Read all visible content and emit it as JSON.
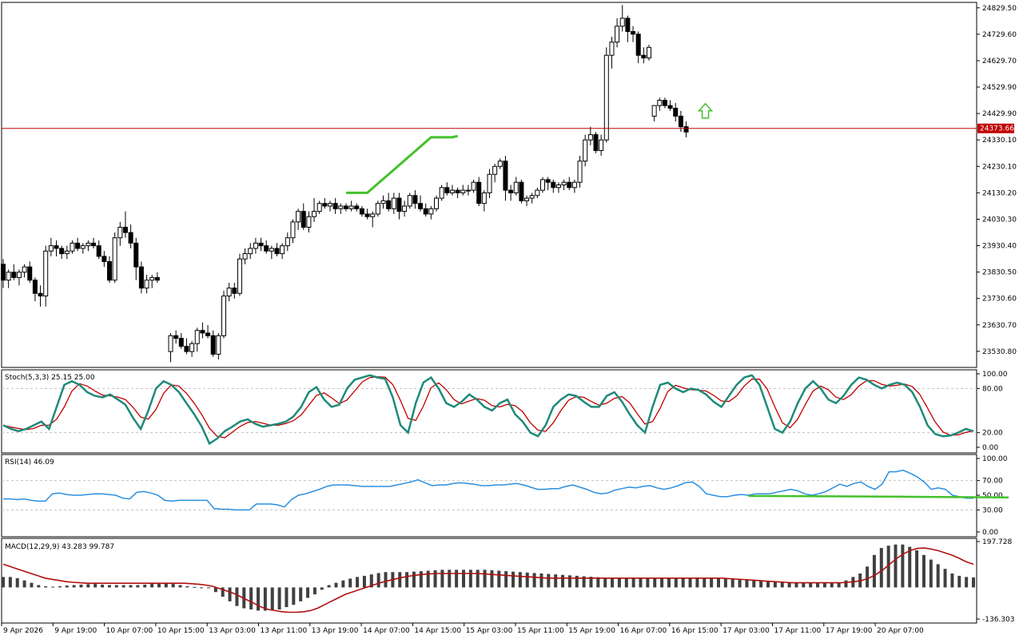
{
  "chart_data": {
    "type": "candlestick",
    "price_axis": {
      "ticks": [
        "24829.50",
        "24729.60",
        "24629.70",
        "24529.90",
        "24429.90",
        "24330.10",
        "24230.10",
        "24130.20",
        "24030.30",
        "23930.40",
        "23830.50",
        "23730.60",
        "23630.70",
        "23530.80"
      ],
      "range": [
        23470,
        24850
      ],
      "current_price": "24373.66",
      "current_price_value": 24373.66,
      "current_price_color": "#c00000"
    },
    "time_axis": {
      "labels": [
        "9 Apr 2026",
        "9 Apr 19:00",
        "10 Apr 07:00",
        "10 Apr 15:00",
        "13 Apr 03:00",
        "13 Apr 11:00",
        "13 Apr 19:00",
        "14 Apr 07:00",
        "14 Apr 15:00",
        "15 Apr 03:00",
        "15 Apr 11:00",
        "15 Apr 19:00",
        "16 Apr 07:00",
        "16 Apr 15:00",
        "17 Apr 03:00",
        "17 Apr 11:00",
        "17 Apr 19:00",
        "20 Apr 07:00"
      ]
    },
    "candles": [
      [
        23860,
        23880,
        23770,
        23800
      ],
      [
        23800,
        23840,
        23770,
        23830
      ],
      [
        23830,
        23860,
        23800,
        23810
      ],
      [
        23810,
        23840,
        23780,
        23830
      ],
      [
        23830,
        23860,
        23810,
        23850
      ],
      [
        23850,
        23870,
        23790,
        23800
      ],
      [
        23800,
        23810,
        23720,
        23750
      ],
      [
        23750,
        23780,
        23700,
        23740
      ],
      [
        23740,
        23930,
        23700,
        23910
      ],
      [
        23910,
        23960,
        23890,
        23930
      ],
      [
        23930,
        23950,
        23890,
        23920
      ],
      [
        23920,
        23930,
        23880,
        23900
      ],
      [
        23900,
        23930,
        23880,
        23910
      ],
      [
        23910,
        23950,
        23900,
        23940
      ],
      [
        23940,
        23960,
        23910,
        23920
      ],
      [
        23920,
        23940,
        23900,
        23930
      ],
      [
        23930,
        23950,
        23910,
        23940
      ],
      [
        23940,
        23960,
        23920,
        23930
      ],
      [
        23930,
        23950,
        23880,
        23890
      ],
      [
        23890,
        23910,
        23850,
        23870
      ],
      [
        23870,
        23890,
        23790,
        23800
      ],
      [
        23800,
        23980,
        23790,
        23960
      ],
      [
        23960,
        24020,
        23930,
        24000
      ],
      [
        24000,
        24060,
        23960,
        23980
      ],
      [
        23980,
        24010,
        23920,
        23940
      ],
      [
        23940,
        23960,
        23800,
        23850
      ],
      [
        23850,
        23870,
        23750,
        23770
      ],
      [
        23770,
        23820,
        23750,
        23800
      ],
      [
        23800,
        23820,
        23770,
        23810
      ],
      [
        23810,
        23830,
        23790,
        23800
      ],
      [
        23530,
        23600,
        23490,
        23590
      ],
      [
        23590,
        23610,
        23560,
        23580
      ],
      [
        23580,
        23600,
        23540,
        23550
      ],
      [
        23550,
        23580,
        23520,
        23530
      ],
      [
        23530,
        23570,
        23510,
        23560
      ],
      [
        23560,
        23620,
        23530,
        23610
      ],
      [
        23610,
        23640,
        23580,
        23600
      ],
      [
        23600,
        23630,
        23580,
        23590
      ],
      [
        23590,
        23610,
        23510,
        23520
      ],
      [
        23520,
        23600,
        23500,
        23590
      ],
      [
        23590,
        23760,
        23580,
        23740
      ],
      [
        23740,
        23790,
        23720,
        23770
      ],
      [
        23770,
        23790,
        23730,
        23750
      ],
      [
        23750,
        23900,
        23740,
        23880
      ],
      [
        23880,
        23920,
        23860,
        23900
      ],
      [
        23900,
        23940,
        23880,
        23920
      ],
      [
        23920,
        23960,
        23900,
        23940
      ],
      [
        23940,
        23960,
        23910,
        23930
      ],
      [
        23930,
        23950,
        23900,
        23910
      ],
      [
        23910,
        23930,
        23880,
        23920
      ],
      [
        23920,
        23940,
        23890,
        23900
      ],
      [
        23900,
        23940,
        23880,
        23930
      ],
      [
        23930,
        23980,
        23910,
        23960
      ],
      [
        23960,
        24030,
        23940,
        24020
      ],
      [
        24020,
        24070,
        23990,
        24060
      ],
      [
        24060,
        24090,
        23990,
        24000
      ],
      [
        24000,
        24060,
        23980,
        24040
      ],
      [
        24040,
        24110,
        24020,
        24060
      ],
      [
        24060,
        24100,
        24050,
        24090
      ],
      [
        24090,
        24110,
        24070,
        24080
      ],
      [
        24080,
        24100,
        24060,
        24090
      ],
      [
        24090,
        24110,
        24050,
        24070
      ],
      [
        24070,
        24090,
        24050,
        24080
      ],
      [
        24080,
        24090,
        24060,
        24070
      ],
      [
        24070,
        24100,
        24060,
        24080
      ],
      [
        24080,
        24090,
        24060,
        24070
      ],
      [
        24070,
        24080,
        24040,
        24050
      ],
      [
        24050,
        24070,
        24030,
        24040
      ],
      [
        24040,
        24060,
        24000,
        24050
      ],
      [
        24050,
        24100,
        24040,
        24090
      ],
      [
        24090,
        24120,
        24070,
        24100
      ],
      [
        24100,
        24130,
        24060,
        24070
      ],
      [
        24070,
        24130,
        24050,
        24110
      ],
      [
        24110,
        24130,
        24030,
        24060
      ],
      [
        24060,
        24100,
        24040,
        24080
      ],
      [
        24080,
        24130,
        24070,
        24120
      ],
      [
        24120,
        24140,
        24070,
        24090
      ],
      [
        24090,
        24120,
        24060,
        24070
      ],
      [
        24070,
        24090,
        24040,
        24050
      ],
      [
        24050,
        24080,
        24030,
        24070
      ],
      [
        24070,
        24120,
        24060,
        24110
      ],
      [
        24110,
        24160,
        24100,
        24150
      ],
      [
        24150,
        24170,
        24120,
        24130
      ],
      [
        24130,
        24160,
        24120,
        24140
      ],
      [
        24140,
        24150,
        24110,
        24130
      ],
      [
        24130,
        24160,
        24120,
        24140
      ],
      [
        24140,
        24160,
        24120,
        24140
      ],
      [
        24140,
        24180,
        24130,
        24170
      ],
      [
        24170,
        24190,
        24080,
        24090
      ],
      [
        24090,
        24140,
        24060,
        24130
      ],
      [
        24130,
        24220,
        24110,
        24200
      ],
      [
        24200,
        24240,
        24170,
        24230
      ],
      [
        24230,
        24260,
        24220,
        24250
      ],
      [
        24250,
        24270,
        24100,
        24140
      ],
      [
        24140,
        24160,
        24100,
        24130
      ],
      [
        24130,
        24190,
        24120,
        24170
      ],
      [
        24170,
        24180,
        24090,
        24100
      ],
      [
        24100,
        24120,
        24080,
        24110
      ],
      [
        24110,
        24130,
        24090,
        24120
      ],
      [
        24120,
        24150,
        24110,
        24140
      ],
      [
        24140,
        24190,
        24130,
        24180
      ],
      [
        24180,
        24190,
        24140,
        24170
      ],
      [
        24170,
        24180,
        24130,
        24150
      ],
      [
        24150,
        24170,
        24130,
        24160
      ],
      [
        24160,
        24180,
        24140,
        24170
      ],
      [
        24170,
        24190,
        24140,
        24150
      ],
      [
        24150,
        24180,
        24130,
        24170
      ],
      [
        24170,
        24270,
        24150,
        24250
      ],
      [
        24250,
        24350,
        24230,
        24330
      ],
      [
        24330,
        24380,
        24310,
        24350
      ],
      [
        24350,
        24360,
        24280,
        24290
      ],
      [
        24290,
        24350,
        24270,
        24330
      ],
      [
        24330,
        24680,
        24320,
        24650
      ],
      [
        24650,
        24720,
        24600,
        24700
      ],
      [
        24700,
        24790,
        24680,
        24760
      ],
      [
        24760,
        24840,
        24740,
        24790
      ],
      [
        24790,
        24800,
        24700,
        24740
      ],
      [
        24740,
        24760,
        24700,
        24730
      ],
      [
        24730,
        24740,
        24620,
        24650
      ],
      [
        24650,
        24680,
        24620,
        24640
      ],
      [
        24640,
        24690,
        24630,
        24680
      ],
      [
        24420,
        24460,
        24400,
        24460
      ],
      [
        24460,
        24490,
        24440,
        24480
      ],
      [
        24480,
        24490,
        24450,
        24460
      ],
      [
        24460,
        24480,
        24440,
        24450
      ],
      [
        24450,
        24470,
        24400,
        24420
      ],
      [
        24420,
        24440,
        24360,
        24380
      ],
      [
        24380,
        24400,
        24340,
        24360
      ]
    ],
    "support_line": {
      "color": "#44c12c",
      "points": [
        [
          24130,
          63
        ],
        [
          24130,
          67
        ],
        [
          24340,
          79
        ],
        [
          24340,
          83
        ],
        [
          24345,
          84
        ]
      ]
    },
    "arrow_color": "#44c12c",
    "stochastic": {
      "label": "Stoch(5,3,3) 25.15 25.00",
      "ticks": [
        "100.00",
        "80.00",
        "20.00",
        "0.00"
      ],
      "levels": [
        80,
        20
      ],
      "main_color": "#1f8a7a",
      "signal_color": "#c00000",
      "main": [
        30,
        25,
        22,
        25,
        30,
        35,
        25,
        55,
        85,
        90,
        85,
        75,
        70,
        68,
        72,
        65,
        58,
        40,
        25,
        50,
        80,
        90,
        85,
        75,
        60,
        45,
        28,
        5,
        12,
        22,
        28,
        35,
        38,
        32,
        28,
        30,
        32,
        35,
        42,
        55,
        75,
        82,
        65,
        55,
        58,
        80,
        92,
        95,
        98,
        95,
        93,
        68,
        30,
        20,
        60,
        88,
        95,
        80,
        60,
        55,
        62,
        72,
        65,
        55,
        50,
        60,
        65,
        45,
        35,
        20,
        15,
        30,
        55,
        65,
        72,
        70,
        62,
        55,
        55,
        70,
        75,
        62,
        45,
        30,
        20,
        55,
        85,
        88,
        80,
        75,
        80,
        78,
        72,
        62,
        55,
        70,
        85,
        95,
        98,
        85,
        55,
        25,
        20,
        35,
        60,
        80,
        90,
        80,
        65,
        60,
        70,
        85,
        95,
        92,
        85,
        80,
        85,
        88,
        85,
        75,
        55,
        30,
        18,
        15,
        16,
        20,
        25,
        22
      ],
      "signal": []
    },
    "rsi": {
      "label": "RSI(14) 46.09",
      "ticks": [
        "100.00",
        "70.00",
        "50.00",
        "30.00",
        "0.00"
      ],
      "levels": [
        70,
        30
      ],
      "color": "#2a8fe0",
      "values": [
        45,
        45,
        44,
        45,
        43,
        42,
        42,
        52,
        53,
        51,
        50,
        50,
        51,
        52,
        52,
        51,
        50,
        46,
        45,
        54,
        55,
        53,
        50,
        43,
        42,
        43,
        43,
        43,
        43,
        43,
        32,
        31,
        31,
        30,
        30,
        30,
        38,
        38,
        38,
        37,
        34,
        44,
        50,
        52,
        55,
        58,
        62,
        64,
        64,
        64,
        63,
        62,
        62,
        62,
        62,
        62,
        64,
        66,
        68,
        71,
        67,
        63,
        64,
        64,
        66,
        67,
        66,
        65,
        63,
        63,
        64,
        64,
        65,
        66,
        64,
        61,
        58,
        58,
        59,
        59,
        62,
        64,
        61,
        58,
        54,
        52,
        53,
        57,
        59,
        61,
        60,
        62,
        63,
        60,
        58,
        60,
        63,
        67,
        68,
        62,
        52,
        50,
        48,
        48,
        50,
        51,
        50,
        52,
        52,
        52,
        54,
        56,
        58,
        56,
        52,
        50,
        52,
        55,
        60,
        65,
        62,
        66,
        68,
        62,
        58,
        65,
        82,
        82,
        84,
        80,
        75,
        68,
        58,
        60,
        58,
        50,
        48,
        46,
        46
      ],
      "trend_line": {
        "color": "#44c12c",
        "points": [
          [
            106,
            49
          ],
          [
            126,
            48
          ],
          [
            127,
            48
          ],
          [
            143,
            47
          ]
        ]
      }
    },
    "macd": {
      "label": "MACD(12,29,9) 43.283 99.787",
      "ticks": [
        "197.728",
        "-136.303"
      ],
      "range": [
        -136.303,
        197.728
      ],
      "histogram_color": "#404040",
      "signal_color": "#b01010",
      "histogram": [
        45,
        45,
        40,
        30,
        20,
        10,
        5,
        3,
        5,
        8,
        10,
        12,
        14,
        15,
        12,
        10,
        10,
        10,
        10,
        10,
        12,
        15,
        18,
        18,
        15,
        10,
        5,
        2,
        0,
        -2,
        -20,
        -40,
        -60,
        -80,
        -90,
        -95,
        -100,
        -100,
        -100,
        -95,
        -85,
        -75,
        -60,
        -45,
        -30,
        -10,
        10,
        20,
        30,
        38,
        45,
        50,
        56,
        62,
        66,
        66,
        66,
        66,
        68,
        70,
        72,
        74,
        76,
        76,
        76,
        76,
        76,
        76,
        76,
        74,
        72,
        70,
        68,
        66,
        64,
        62,
        60,
        58,
        56,
        54,
        52,
        50,
        48,
        46,
        44,
        42,
        40,
        38,
        38,
        38,
        38,
        38,
        38,
        38,
        38,
        38,
        38,
        38,
        38,
        38,
        38,
        38,
        38,
        36,
        34,
        32,
        30,
        28,
        26,
        24,
        22,
        20,
        20,
        20,
        20,
        20,
        20,
        20,
        20,
        30,
        45,
        60,
        90,
        140,
        170,
        180,
        185,
        185,
        175,
        160,
        140,
        120,
        100,
        80,
        60,
        50,
        45,
        43
      ],
      "signal": [
        100,
        90,
        80,
        70,
        60,
        50,
        40,
        35,
        30,
        25,
        22,
        20,
        18,
        18,
        18,
        18,
        18,
        18,
        18,
        18,
        18,
        18,
        18,
        18,
        18,
        18,
        18,
        16,
        14,
        10,
        5,
        -5,
        -15,
        -25,
        -40,
        -55,
        -70,
        -85,
        -95,
        -100,
        -105,
        -107,
        -107,
        -105,
        -100,
        -90,
        -75,
        -60,
        -45,
        -30,
        -20,
        -10,
        0,
        10,
        20,
        28,
        35,
        42,
        48,
        52,
        56,
        58,
        60,
        60,
        60,
        60,
        60,
        60,
        60,
        58,
        56,
        54,
        52,
        50,
        48,
        46,
        44,
        42,
        40,
        40,
        40,
        40,
        40,
        40,
        40,
        40,
        40,
        40,
        40,
        40,
        40,
        40,
        40,
        40,
        40,
        40,
        40,
        40,
        40,
        40,
        40,
        40,
        40,
        40,
        38,
        36,
        34,
        32,
        30,
        28,
        26,
        24,
        22,
        20,
        20,
        20,
        20,
        20,
        20,
        20,
        20,
        22,
        25,
        30,
        40,
        55,
        75,
        100,
        125,
        145,
        160,
        168,
        170,
        165,
        158,
        148,
        138,
        125,
        110,
        100
      ]
    }
  }
}
